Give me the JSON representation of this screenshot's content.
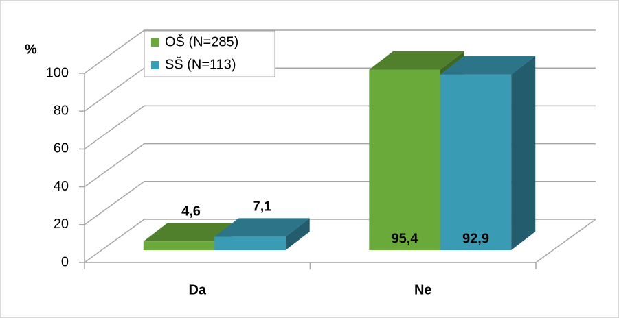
{
  "chart_data": {
    "type": "bar3d",
    "y_label": "%",
    "categories": [
      "Da",
      "Ne"
    ],
    "series": [
      {
        "name": "OŠ (N=285)",
        "color": "#6aaa3a",
        "values": [
          4.6,
          95.4
        ],
        "value_labels": [
          "4,6",
          "95,4"
        ]
      },
      {
        "name": "SŠ (N=113)",
        "color": "#3a9bb5",
        "values": [
          7.1,
          92.9
        ],
        "value_labels": [
          "7,1",
          "92,9"
        ]
      }
    ],
    "ylim": [
      0,
      100
    ],
    "yticks": [
      0,
      20,
      40,
      60,
      80,
      100
    ],
    "grid": true,
    "legend": "top-left"
  }
}
